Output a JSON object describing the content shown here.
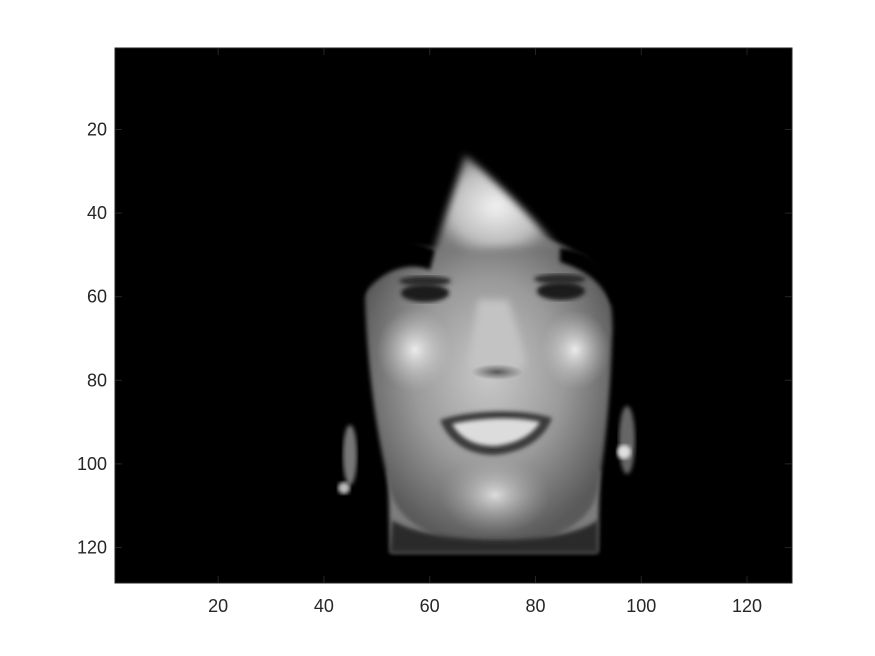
{
  "figure": {
    "background": "#ffffff",
    "axes_color": "#262626",
    "image_description_colormap": "gray",
    "x_range": [
      0.5,
      128.5
    ],
    "y_range": [
      0.5,
      128.5
    ],
    "y_direction": "reverse",
    "x_ticks": [
      20,
      40,
      60,
      80,
      100,
      120
    ],
    "y_ticks": [
      20,
      40,
      60,
      80,
      100,
      120
    ],
    "x_tick_labels": [
      "20",
      "40",
      "60",
      "80",
      "100",
      "120"
    ],
    "y_tick_labels": [
      "20",
      "40",
      "60",
      "80",
      "100",
      "120"
    ]
  }
}
